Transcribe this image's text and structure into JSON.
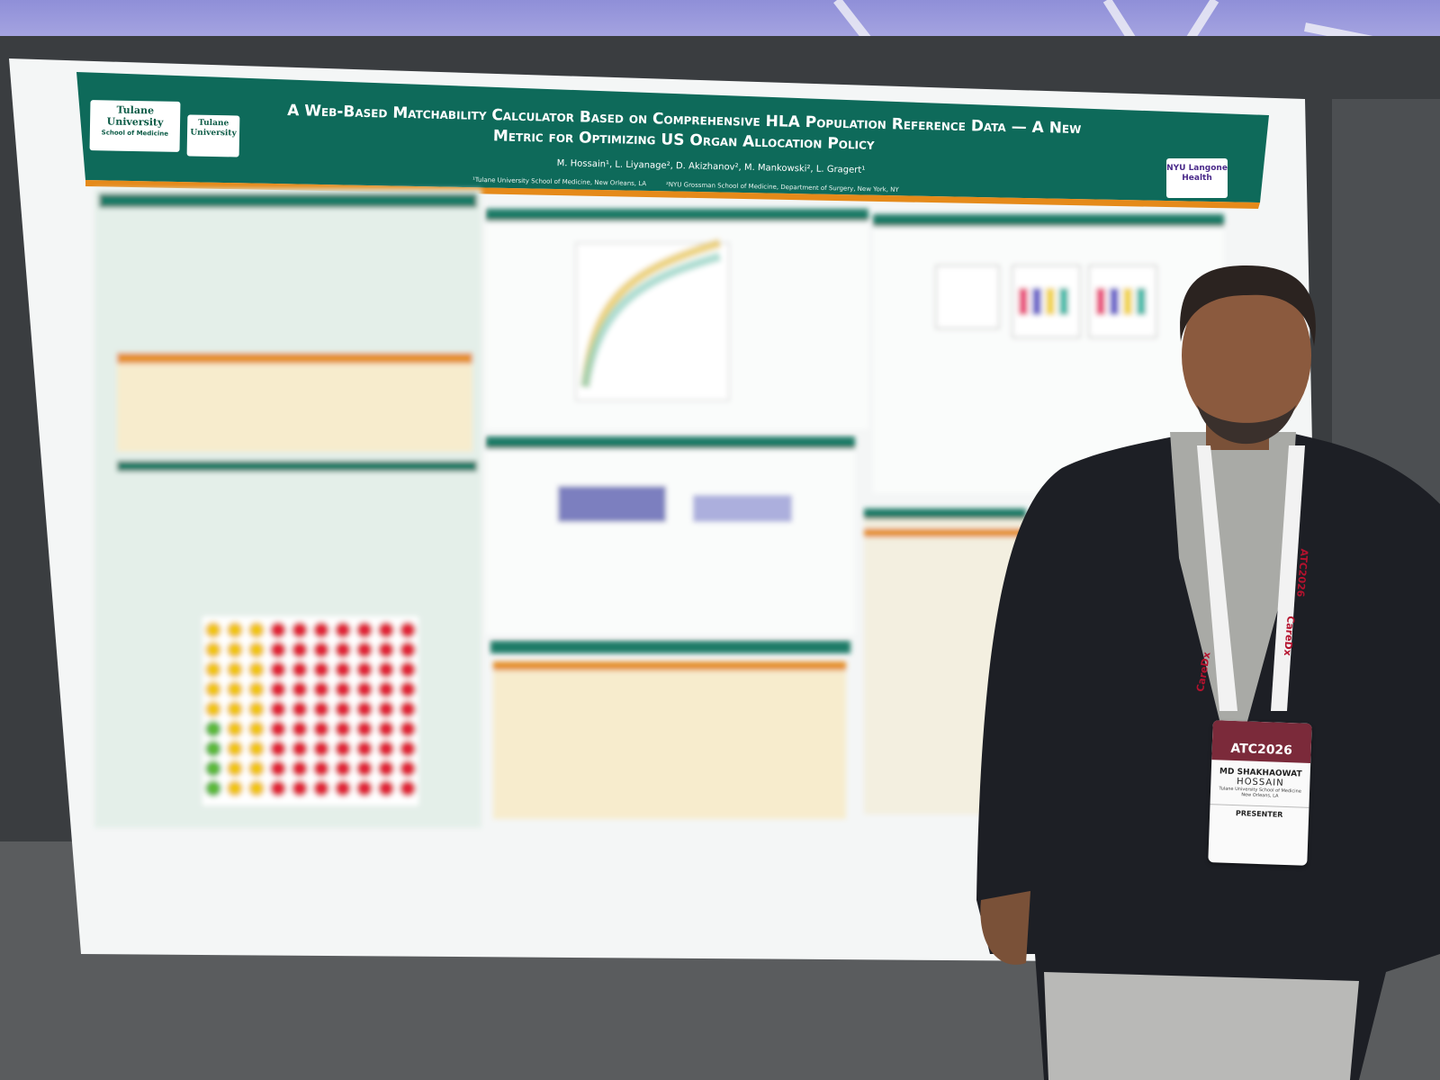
{
  "poster": {
    "title": "A Web-Based Matchability Calculator Based on Comprehensive HLA Population Reference Data — A New Metric for Optimizing US Organ Allocation Policy",
    "authors": "M. Hossain¹, L. Liyanage², D. Akizhanov², M. Mankowski², L. Gragert¹",
    "affiliations": [
      "¹Tulane University School of Medicine, New Orleans, LA",
      "²NYU Grossman School of Medicine, Department of Surgery, New York, NY"
    ],
    "logo_left": {
      "name": "Tulane University",
      "unit": "School of Medicine"
    },
    "logo_middle": "Tulane University",
    "logo_right": "NYU Langone Health"
  },
  "lanyard": {
    "sponsor": "CareDx",
    "event": "ATC2026"
  },
  "badge": {
    "event": "ATC2026",
    "first_name": "MD SHAKHAOWAT",
    "last_name": "HOSSAIN",
    "affiliation": "Tulane University School of Medicine",
    "location": "New Orleans, LA",
    "role": "PRESENTER"
  }
}
